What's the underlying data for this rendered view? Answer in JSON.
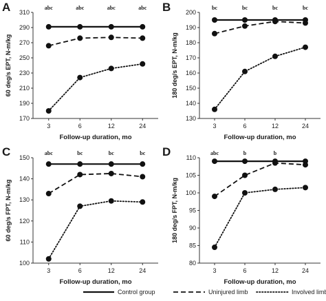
{
  "legend": [
    {
      "key": "control",
      "label": "Control group",
      "style": "solid"
    },
    {
      "key": "uninjured",
      "label": "Uninjured limb",
      "style": "dashed"
    },
    {
      "key": "involved",
      "label": "Involved limb",
      "style": "dotted"
    }
  ],
  "chart_data": [
    {
      "panel": "A",
      "type": "line",
      "x": [
        "3",
        "6",
        "12",
        "24"
      ],
      "xlabel": "Follow-up duration, mo",
      "ylabel": "60 deg/s EPT, N-m/kg",
      "ylim": [
        170,
        310
      ],
      "yticks": [
        170,
        190,
        210,
        230,
        250,
        270,
        290,
        310
      ],
      "significance": [
        "abc",
        "abc",
        "abc",
        "abc"
      ],
      "series": [
        {
          "key": "control",
          "values": [
            291,
            291,
            291,
            291
          ]
        },
        {
          "key": "uninjured",
          "values": [
            266,
            276,
            277,
            276
          ]
        },
        {
          "key": "involved",
          "values": [
            180,
            224,
            236,
            242
          ]
        }
      ]
    },
    {
      "panel": "B",
      "type": "line",
      "x": [
        "3",
        "6",
        "12",
        "24"
      ],
      "xlabel": "Follow-up duration, mo",
      "ylabel": "180 deg/s EPT, N-m/kg",
      "ylim": [
        130,
        200
      ],
      "yticks": [
        130,
        140,
        150,
        160,
        170,
        180,
        190,
        200
      ],
      "significance": [
        "bc",
        "bc",
        "bc",
        "bc"
      ],
      "series": [
        {
          "key": "control",
          "values": [
            195,
            195,
            195,
            195
          ]
        },
        {
          "key": "uninjured",
          "values": [
            186,
            191,
            194,
            193
          ]
        },
        {
          "key": "involved",
          "values": [
            136,
            161,
            171,
            177
          ]
        }
      ]
    },
    {
      "panel": "C",
      "type": "line",
      "x": [
        "3",
        "6",
        "12",
        "24"
      ],
      "xlabel": "Follow-up duration, mo",
      "ylabel": "60 deg/s FPT, N-m/kg",
      "ylim": [
        100,
        150
      ],
      "yticks": [
        100,
        110,
        120,
        130,
        140,
        150
      ],
      "significance": [
        "abc",
        "bc",
        "bc",
        "bc"
      ],
      "series": [
        {
          "key": "control",
          "values": [
            147,
            147,
            147,
            147
          ]
        },
        {
          "key": "uninjured",
          "values": [
            133,
            142,
            142.5,
            141
          ]
        },
        {
          "key": "involved",
          "values": [
            102,
            127,
            129.5,
            129
          ]
        }
      ]
    },
    {
      "panel": "D",
      "type": "line",
      "x": [
        "3",
        "6",
        "12",
        "24"
      ],
      "xlabel": "Follow-up duration, mo",
      "ylabel": "180 deg/s FPT, N-m/kg",
      "ylim": [
        80,
        110
      ],
      "yticks": [
        80,
        85,
        90,
        95,
        100,
        105,
        110
      ],
      "significance": [
        "abc",
        "b",
        "b",
        ""
      ],
      "series": [
        {
          "key": "control",
          "values": [
            109,
            109,
            109,
            109
          ]
        },
        {
          "key": "uninjured",
          "values": [
            99,
            105,
            108.5,
            108
          ]
        },
        {
          "key": "involved",
          "values": [
            84.5,
            100,
            101,
            101.5
          ]
        }
      ]
    }
  ]
}
